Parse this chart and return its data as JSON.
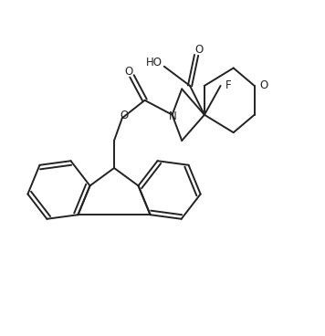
{
  "bg_color": "#ffffff",
  "line_color": "#222222",
  "line_width": 1.4,
  "figsize": [
    3.56,
    3.68
  ],
  "dpi": 100,
  "xlim": [
    0,
    10
  ],
  "ylim": [
    0,
    10
  ]
}
